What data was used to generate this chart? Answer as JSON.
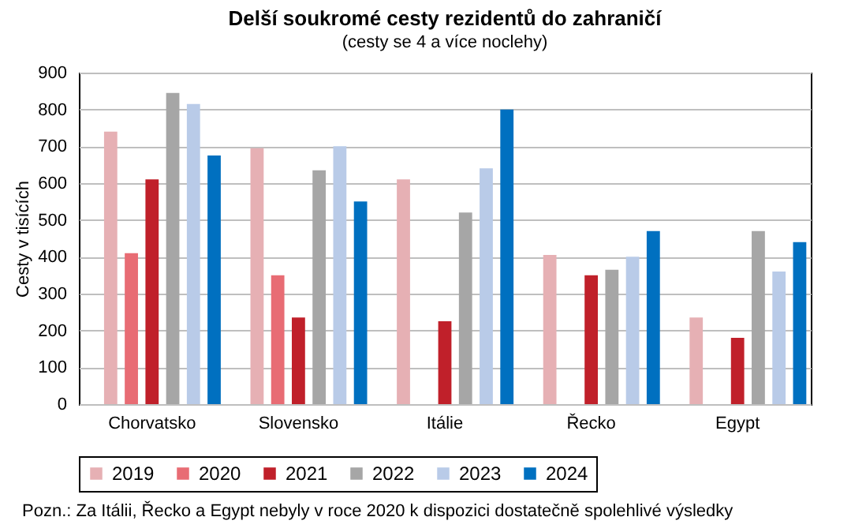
{
  "chart_data": {
    "type": "bar",
    "title": "Delší soukromé cesty rezidentů do zahraničí",
    "subtitle": "(cesty se 4 a více noclehy)",
    "ylabel": "Cesty v tisících",
    "categories": [
      "Chorvatsko",
      "Slovensko",
      "Itálie",
      "Řecko",
      "Egypt"
    ],
    "series": [
      {
        "name": "2019",
        "color": "#e6b0b4",
        "values": [
          740,
          695,
          610,
          405,
          235
        ]
      },
      {
        "name": "2020",
        "color": "#e86c74",
        "values": [
          410,
          350,
          null,
          null,
          null
        ]
      },
      {
        "name": "2021",
        "color": "#c0202a",
        "values": [
          610,
          235,
          225,
          350,
          180
        ]
      },
      {
        "name": "2022",
        "color": "#a6a6a6",
        "values": [
          845,
          635,
          520,
          365,
          470
        ]
      },
      {
        "name": "2023",
        "color": "#b9cbe8",
        "values": [
          815,
          700,
          640,
          400,
          360
        ]
      },
      {
        "name": "2024",
        "color": "#0070c0",
        "values": [
          675,
          550,
          800,
          470,
          440
        ]
      }
    ],
    "ylim": [
      0,
      900
    ],
    "yticks": [
      0,
      100,
      200,
      300,
      400,
      500,
      600,
      700,
      800,
      900
    ],
    "grid": "y",
    "legend": "bottom",
    "annotations": [
      "Pozn.:  Za Itálii, Řecko a Egypt nebyly v roce 2020 k dispozici dostatečně spolehlivé výsledky"
    ]
  }
}
